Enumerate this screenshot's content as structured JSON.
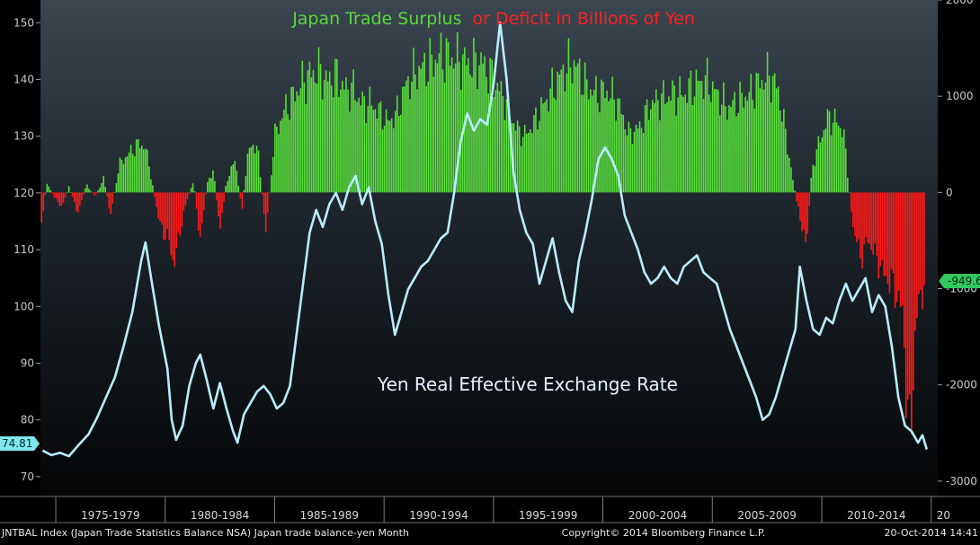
{
  "chart_data": {
    "type": "bar+line",
    "title_part_green": "Japan Trade Surplus",
    "title_part_red": "or Deficit in Billions of Yen",
    "annotation": "Yen Real Effective Exchange Rate",
    "x_tick_labels": [
      "1975-1979",
      "1980-1984",
      "1985-1989",
      "1990-1994",
      "1995-1999",
      "2000-2004",
      "2005-2009",
      "2010-2014",
      "20"
    ],
    "x_range": [
      1974.3,
      2015.3
    ],
    "left_axis": {
      "label": "",
      "ylim": [
        66.5,
        154
      ],
      "ticks": [
        70,
        80,
        90,
        100,
        110,
        120,
        130,
        140,
        150
      ]
    },
    "right_axis": {
      "label": "",
      "ylim": [
        -3160,
        2000
      ],
      "ticks": [
        2000,
        1000,
        0,
        -1000,
        -2000,
        -3000
      ],
      "tick_labels": [
        "2000",
        "1000",
        "0",
        "-1000",
        "-2000",
        "-3000"
      ]
    },
    "last_value_left": "74.81",
    "last_value_right": "-949.6",
    "colors": {
      "surplus": "#59e03c",
      "deficit": "#ff1a1a",
      "line": "#b9ecff",
      "title_green": "#5ad83c",
      "title_red": "#ff2020",
      "marker_left": "#7ee8ee",
      "marker_right": "#32c860"
    },
    "series": [
      {
        "name": "Japan trade balance-yen",
        "axis": "right",
        "kind": "bar",
        "anchors": [
          [
            1974.35,
            -300
          ],
          [
            1974.6,
            100
          ],
          [
            1975.0,
            -80
          ],
          [
            1975.3,
            -150
          ],
          [
            1975.6,
            60
          ],
          [
            1976.0,
            -220
          ],
          [
            1976.4,
            80
          ],
          [
            1976.8,
            -40
          ],
          [
            1977.2,
            150
          ],
          [
            1977.5,
            -250
          ],
          [
            1977.9,
            300
          ],
          [
            1978.4,
            430
          ],
          [
            1978.8,
            520
          ],
          [
            1979.1,
            480
          ],
          [
            1979.4,
            120
          ],
          [
            1979.7,
            -300
          ],
          [
            1980.0,
            -460
          ],
          [
            1980.2,
            -520
          ],
          [
            1980.4,
            -790
          ],
          [
            1980.7,
            -380
          ],
          [
            1981.0,
            -80
          ],
          [
            1981.3,
            120
          ],
          [
            1981.6,
            -520
          ],
          [
            1981.9,
            80
          ],
          [
            1982.2,
            250
          ],
          [
            1982.5,
            -420
          ],
          [
            1982.8,
            120
          ],
          [
            1983.2,
            350
          ],
          [
            1983.5,
            -180
          ],
          [
            1983.8,
            450
          ],
          [
            1984.2,
            520
          ],
          [
            1984.6,
            -420
          ],
          [
            1985.0,
            600
          ],
          [
            1985.4,
            850
          ],
          [
            1985.8,
            1000
          ],
          [
            1986.2,
            1150
          ],
          [
            1986.6,
            1250
          ],
          [
            1987.0,
            1300
          ],
          [
            1987.4,
            1180
          ],
          [
            1987.8,
            1250
          ],
          [
            1988.2,
            1100
          ],
          [
            1988.6,
            1100
          ],
          [
            1989.0,
            950
          ],
          [
            1989.4,
            950
          ],
          [
            1989.8,
            850
          ],
          [
            1990.2,
            750
          ],
          [
            1990.6,
            850
          ],
          [
            1991.0,
            1150
          ],
          [
            1991.5,
            1300
          ],
          [
            1992.0,
            1350
          ],
          [
            1992.5,
            1450
          ],
          [
            1993.0,
            1450
          ],
          [
            1993.5,
            1400
          ],
          [
            1994.0,
            1380
          ],
          [
            1994.5,
            1380
          ],
          [
            1995.0,
            1200
          ],
          [
            1995.5,
            1000
          ],
          [
            1996.0,
            700
          ],
          [
            1996.4,
            600
          ],
          [
            1996.8,
            720
          ],
          [
            1997.2,
            900
          ],
          [
            1997.7,
            1100
          ],
          [
            1998.2,
            1300
          ],
          [
            1998.7,
            1380
          ],
          [
            1999.2,
            1150
          ],
          [
            1999.7,
            1050
          ],
          [
            2000.2,
            1080
          ],
          [
            2000.7,
            950
          ],
          [
            2001.2,
            620
          ],
          [
            2001.7,
            700
          ],
          [
            2002.2,
            950
          ],
          [
            2002.7,
            1000
          ],
          [
            2003.2,
            1050
          ],
          [
            2003.7,
            1050
          ],
          [
            2004.2,
            1150
          ],
          [
            2004.7,
            1200
          ],
          [
            2005.2,
            1050
          ],
          [
            2005.7,
            900
          ],
          [
            2006.2,
            980
          ],
          [
            2006.7,
            1050
          ],
          [
            2007.2,
            1180
          ],
          [
            2007.6,
            1250
          ],
          [
            2008.0,
            1100
          ],
          [
            2008.3,
            700
          ],
          [
            2008.6,
            250
          ],
          [
            2008.85,
            -100
          ],
          [
            2009.05,
            -300
          ],
          [
            2009.3,
            -600
          ],
          [
            2009.55,
            250
          ],
          [
            2009.9,
            550
          ],
          [
            2010.3,
            800
          ],
          [
            2010.7,
            750
          ],
          [
            2011.0,
            650
          ],
          [
            2011.2,
            150
          ],
          [
            2011.45,
            -400
          ],
          [
            2011.8,
            -700
          ],
          [
            2012.1,
            -500
          ],
          [
            2012.5,
            -700
          ],
          [
            2012.9,
            -900
          ],
          [
            2013.3,
            -1000
          ],
          [
            2013.7,
            -1300
          ],
          [
            2014.0,
            -2750
          ],
          [
            2014.3,
            -1400
          ],
          [
            2014.5,
            -1100
          ],
          [
            2014.7,
            -949.6
          ]
        ]
      },
      {
        "name": "Yen Real Effective Exchange Rate",
        "axis": "left",
        "kind": "line",
        "points": [
          [
            1974.4,
            74.6
          ],
          [
            1974.8,
            73.8
          ],
          [
            1975.2,
            74.2
          ],
          [
            1975.6,
            73.6
          ],
          [
            1976.0,
            75.4
          ],
          [
            1976.5,
            77.5
          ],
          [
            1976.9,
            80.5
          ],
          [
            1977.3,
            84
          ],
          [
            1977.7,
            87.5
          ],
          [
            1978.1,
            93
          ],
          [
            1978.5,
            99
          ],
          [
            1978.9,
            108
          ],
          [
            1979.1,
            111.3
          ],
          [
            1979.4,
            104
          ],
          [
            1979.7,
            97
          ],
          [
            1980.1,
            89
          ],
          [
            1980.3,
            80
          ],
          [
            1980.5,
            76.5
          ],
          [
            1980.8,
            79
          ],
          [
            1981.1,
            86
          ],
          [
            1981.4,
            90
          ],
          [
            1981.6,
            91.5
          ],
          [
            1981.9,
            87
          ],
          [
            1982.2,
            82
          ],
          [
            1982.5,
            86.5
          ],
          [
            1982.8,
            82
          ],
          [
            1983.1,
            78
          ],
          [
            1983.3,
            76
          ],
          [
            1983.6,
            81
          ],
          [
            1983.9,
            83
          ],
          [
            1984.2,
            85
          ],
          [
            1984.5,
            86
          ],
          [
            1984.8,
            84.5
          ],
          [
            1985.1,
            82
          ],
          [
            1985.4,
            83
          ],
          [
            1985.7,
            86
          ],
          [
            1986.0,
            95
          ],
          [
            1986.3,
            104
          ],
          [
            1986.6,
            113
          ],
          [
            1986.9,
            117
          ],
          [
            1987.2,
            114
          ],
          [
            1987.5,
            118
          ],
          [
            1987.8,
            120
          ],
          [
            1988.1,
            117
          ],
          [
            1988.4,
            121
          ],
          [
            1988.7,
            123
          ],
          [
            1989.0,
            118
          ],
          [
            1989.3,
            121
          ],
          [
            1989.6,
            115
          ],
          [
            1989.9,
            111
          ],
          [
            1990.2,
            102
          ],
          [
            1990.5,
            95
          ],
          [
            1990.8,
            99
          ],
          [
            1991.1,
            103
          ],
          [
            1991.4,
            105
          ],
          [
            1991.7,
            107
          ],
          [
            1992.0,
            108
          ],
          [
            1992.3,
            110
          ],
          [
            1992.6,
            112
          ],
          [
            1992.9,
            113
          ],
          [
            1993.2,
            120
          ],
          [
            1993.5,
            129
          ],
          [
            1993.8,
            134
          ],
          [
            1994.1,
            131
          ],
          [
            1994.4,
            133
          ],
          [
            1994.7,
            132
          ],
          [
            1995.0,
            139
          ],
          [
            1995.3,
            150
          ],
          [
            1995.6,
            140
          ],
          [
            1995.9,
            124
          ],
          [
            1996.2,
            117
          ],
          [
            1996.5,
            113
          ],
          [
            1996.8,
            111
          ],
          [
            1997.1,
            104
          ],
          [
            1997.4,
            108
          ],
          [
            1997.7,
            112
          ],
          [
            1998.0,
            106
          ],
          [
            1998.3,
            101
          ],
          [
            1998.6,
            99
          ],
          [
            1998.9,
            108
          ],
          [
            1999.2,
            113
          ],
          [
            1999.5,
            119
          ],
          [
            1999.8,
            126
          ],
          [
            2000.1,
            128
          ],
          [
            2000.4,
            126
          ],
          [
            2000.7,
            123
          ],
          [
            2001.0,
            116
          ],
          [
            2001.3,
            113
          ],
          [
            2001.6,
            110
          ],
          [
            2001.9,
            106
          ],
          [
            2002.2,
            104
          ],
          [
            2002.5,
            105
          ],
          [
            2002.8,
            107
          ],
          [
            2003.1,
            105
          ],
          [
            2003.4,
            104
          ],
          [
            2003.7,
            107
          ],
          [
            2004.0,
            108
          ],
          [
            2004.3,
            109
          ],
          [
            2004.6,
            106
          ],
          [
            2004.9,
            105
          ],
          [
            2005.2,
            104
          ],
          [
            2005.5,
            100
          ],
          [
            2005.8,
            96
          ],
          [
            2006.1,
            93
          ],
          [
            2006.4,
            90
          ],
          [
            2006.7,
            87
          ],
          [
            2007.0,
            84
          ],
          [
            2007.3,
            80
          ],
          [
            2007.6,
            81
          ],
          [
            2007.9,
            84
          ],
          [
            2008.2,
            88
          ],
          [
            2008.5,
            92
          ],
          [
            2008.8,
            96
          ],
          [
            2009.0,
            107
          ],
          [
            2009.3,
            101
          ],
          [
            2009.6,
            96
          ],
          [
            2009.9,
            95
          ],
          [
            2010.2,
            98
          ],
          [
            2010.5,
            97
          ],
          [
            2010.8,
            101
          ],
          [
            2011.1,
            104
          ],
          [
            2011.4,
            101
          ],
          [
            2011.7,
            103
          ],
          [
            2012.0,
            105
          ],
          [
            2012.3,
            99
          ],
          [
            2012.6,
            102
          ],
          [
            2012.9,
            100
          ],
          [
            2013.2,
            93
          ],
          [
            2013.5,
            84
          ],
          [
            2013.8,
            79
          ],
          [
            2014.1,
            78
          ],
          [
            2014.4,
            76
          ],
          [
            2014.6,
            77.3
          ],
          [
            2014.8,
            74.81
          ]
        ]
      }
    ],
    "grid": false,
    "legend": "none"
  },
  "footer": {
    "left": "JNTBAL Index (Japan Trade Statistics Balance NSA) Japan trade balance-yen  Month",
    "center": "Copyright© 2014 Bloomberg Finance L.P.",
    "right": "20-Oct-2014 14:41"
  }
}
